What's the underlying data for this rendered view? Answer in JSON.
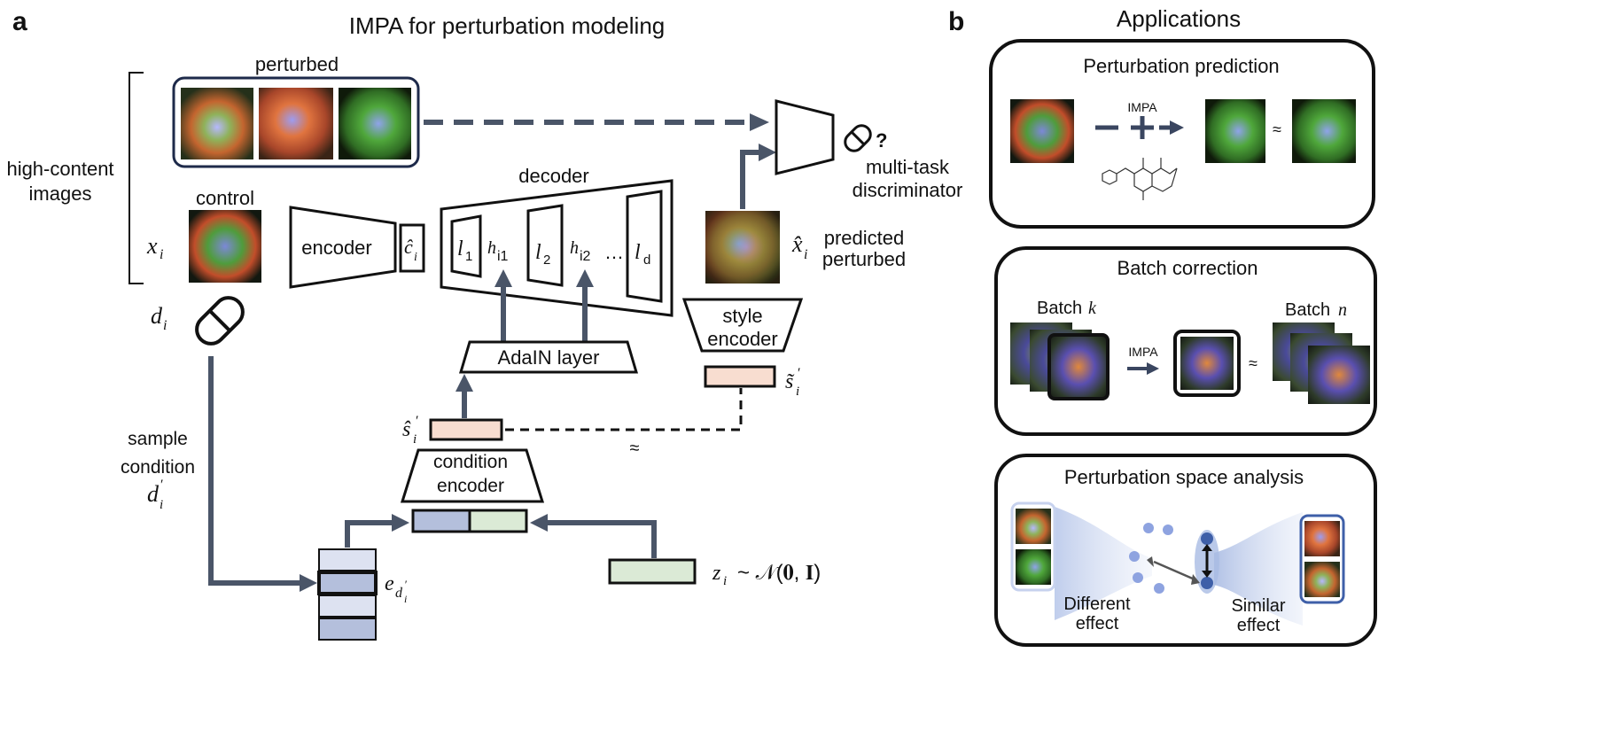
{
  "panel_a": {
    "letter": "a",
    "title": "IMPA for perturbation modeling",
    "perturbed_label": "perturbed",
    "high_content_label": [
      "high-content",
      "images"
    ],
    "control_label": "control",
    "x_i": "x",
    "x_i_sub": "i",
    "d_i": "d",
    "d_i_sub": "i",
    "encoder_label": "encoder",
    "c_hat": "ĉ",
    "c_hat_sub": "i",
    "decoder_label": "decoder",
    "layers": [
      "l",
      "h",
      "l",
      "h",
      "…",
      "l"
    ],
    "layer_subs": [
      "1",
      "i1",
      "2",
      "i2",
      "",
      "d"
    ],
    "adain_label": "AdaIN layer",
    "x_hat": "x̂",
    "x_hat_sub": "i",
    "predicted_label": [
      "predicted",
      "perturbed"
    ],
    "style_encoder_label": [
      "style",
      "encoder"
    ],
    "s_tilde": "s̃",
    "s_tilde_sub": "i",
    "s_prime": "′",
    "s_hat": "ŝ",
    "s_hat_sub": "i",
    "approx": "≈",
    "discriminator_label": [
      "multi-task",
      "discriminator"
    ],
    "question_mark": "?",
    "sample_condition_label": [
      "sample",
      "condition"
    ],
    "d_prime": "d",
    "condition_encoder_label": [
      "condition",
      "encoder"
    ],
    "e_label": "e",
    "e_sub": "d",
    "z_label": "z",
    "z_sub": "i",
    "noise_dist": "~ 𝒩(𝟎, 𝐈)"
  },
  "panel_b": {
    "letter": "b",
    "title": "Applications",
    "box1_title": "Perturbation prediction",
    "box1_impa": "IMPA",
    "box2_title": "Batch correction",
    "batch_k": "Batch",
    "batch_k_var": "k",
    "batch_n": "Batch",
    "batch_n_var": "n",
    "box2_impa": "IMPA",
    "box3_title": "Perturbation space analysis",
    "different_effect": [
      "Different",
      "effect"
    ],
    "similar_effect": [
      "Similar",
      "effect"
    ]
  },
  "colors": {
    "arrow": "#4a5568",
    "latent_peach": "#f8ddd0",
    "latent_blue": "#b4bfdc",
    "latent_green": "#dbead6",
    "embed_light": "#dde2f1",
    "highlight_blue": "#3e5fa8",
    "cell_dark": "#1c2018",
    "cell_green": "#5fae3f",
    "cell_red": "#d04a2c",
    "cell_blue": "#8a8fe0"
  }
}
